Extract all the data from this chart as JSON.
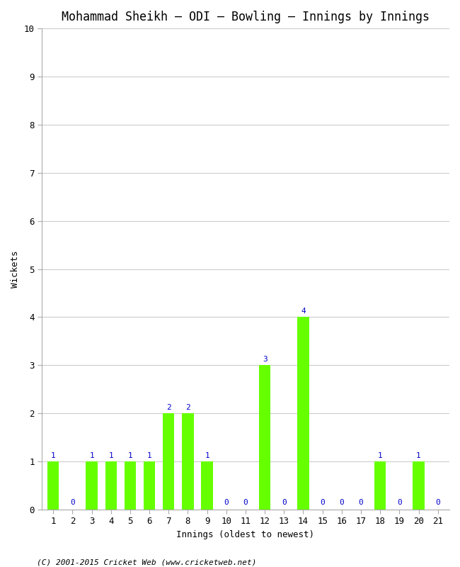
{
  "title": "Mohammad Sheikh – ODI – Bowling – Innings by Innings",
  "xlabel": "Innings (oldest to newest)",
  "ylabel": "Wickets",
  "categories": [
    1,
    2,
    3,
    4,
    5,
    6,
    7,
    8,
    9,
    10,
    11,
    12,
    13,
    14,
    15,
    16,
    17,
    18,
    19,
    20,
    21
  ],
  "values": [
    1,
    0,
    1,
    1,
    1,
    1,
    2,
    2,
    1,
    0,
    0,
    3,
    0,
    4,
    0,
    0,
    0,
    1,
    0,
    1,
    0
  ],
  "bar_color": "#66ff00",
  "label_color": "#0000cc",
  "ylim": [
    0,
    10
  ],
  "yticks": [
    0,
    1,
    2,
    3,
    4,
    5,
    6,
    7,
    8,
    9,
    10
  ],
  "background_color": "#ffffff",
  "grid_color": "#cccccc",
  "footer": "(C) 2001-2015 Cricket Web (www.cricketweb.net)",
  "title_fontsize": 12,
  "axis_label_fontsize": 9,
  "tick_fontsize": 9,
  "label_fontsize": 8,
  "footer_fontsize": 8
}
